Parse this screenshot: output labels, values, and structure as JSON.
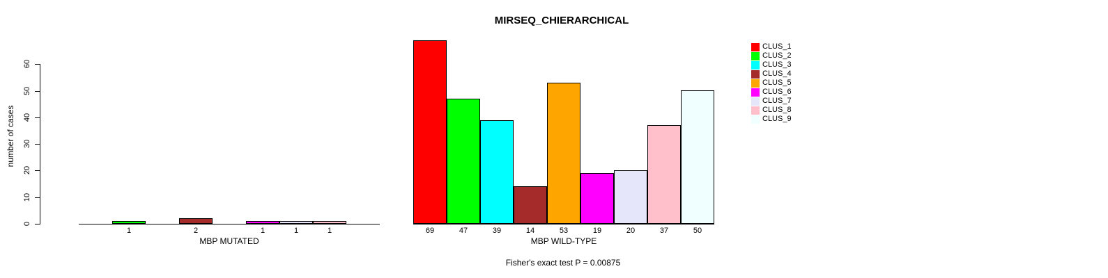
{
  "title": "MIRSEQ_CHIERARCHICAL",
  "y_axis": {
    "label": "number of cases",
    "ticks": [
      0,
      10,
      20,
      30,
      40,
      50,
      60
    ]
  },
  "panels": [
    {
      "xlabel": "MBP MUTATED",
      "values": [
        0,
        1,
        0,
        2,
        0,
        1,
        1,
        1,
        0
      ]
    },
    {
      "xlabel": "MBP WILD-TYPE",
      "values": [
        69,
        47,
        39,
        14,
        53,
        19,
        20,
        37,
        50
      ]
    }
  ],
  "legend": {
    "items": [
      {
        "label": "CLUS_1",
        "color": "#FF0000"
      },
      {
        "label": "CLUS_2",
        "color": "#00FF00"
      },
      {
        "label": "CLUS_3",
        "color": "#00FFFF"
      },
      {
        "label": "CLUS_4",
        "color": "#A52A2A"
      },
      {
        "label": "CLUS_5",
        "color": "#FFA500"
      },
      {
        "label": "CLUS_6",
        "color": "#FF00FF"
      },
      {
        "label": "CLUS_7",
        "color": "#E6E6FA"
      },
      {
        "label": "CLUS_8",
        "color": "#FFC0CB"
      },
      {
        "label": "CLUS_9",
        "color": "#F0FFFF"
      }
    ]
  },
  "footer": "Fisher's exact test P = 0.00875",
  "chart_data": {
    "type": "bar",
    "title": "MIRSEQ_CHIERARCHICAL",
    "ylabel": "number of cases",
    "ylim": [
      0,
      60
    ],
    "yticks": [
      0,
      10,
      20,
      30,
      40,
      50,
      60
    ],
    "categories": [
      "CLUS_1",
      "CLUS_2",
      "CLUS_3",
      "CLUS_4",
      "CLUS_5",
      "CLUS_6",
      "CLUS_7",
      "CLUS_8",
      "CLUS_9"
    ],
    "series": [
      {
        "name": "MBP MUTATED",
        "values": [
          0,
          1,
          0,
          2,
          0,
          1,
          1,
          1,
          0
        ]
      },
      {
        "name": "MBP WILD-TYPE",
        "values": [
          69,
          47,
          39,
          14,
          53,
          19,
          20,
          37,
          50
        ]
      }
    ],
    "colors": [
      "#FF0000",
      "#00FF00",
      "#00FFFF",
      "#A52A2A",
      "#FFA500",
      "#FF00FF",
      "#E6E6FA",
      "#FFC0CB",
      "#F0FFFF"
    ],
    "bar_value_labels_shown": true,
    "zero_value_labels_hidden_in_panel": "MBP MUTATED",
    "legend_position": "right",
    "grid": false,
    "annotation": "Fisher's exact test P = 0.00875"
  }
}
